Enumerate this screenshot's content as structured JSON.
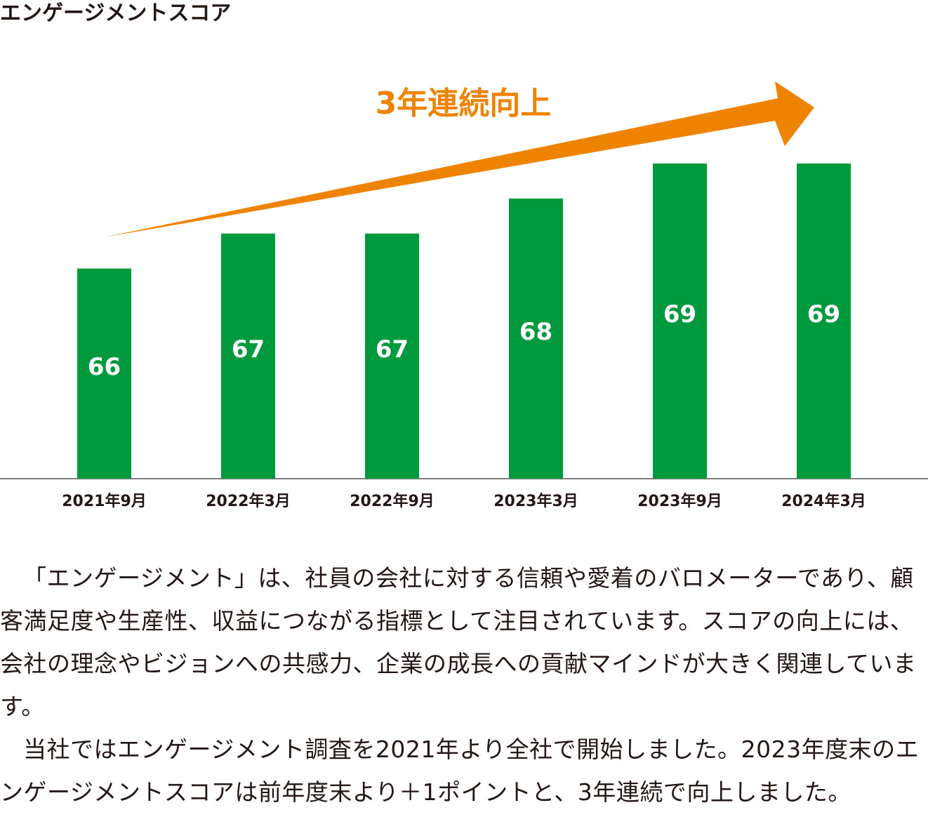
{
  "chart_data": {
    "type": "bar",
    "title": "エンゲージメントスコア",
    "annotation": "3年連続向上",
    "categories": [
      "2021年9月",
      "2022年3月",
      "2022年9月",
      "2023年3月",
      "2023年9月",
      "2024年3月"
    ],
    "values": [
      66,
      67,
      67,
      68,
      69,
      69
    ],
    "color": "#009a3e",
    "annotation_color": "#ee8300",
    "ylim": [
      60,
      70
    ]
  },
  "body": {
    "paragraphs": [
      "「エンゲージメント」は、社員の会社に対する信頼や愛着のバロメーターであり、顧客満足度や生産性、収益につながる指標として注目されています。スコアの向上には、会社の理念やビジョンへの共感力、企業の成長への貢献マインドが大きく関連しています。",
      "当社ではエンゲージメント調査を2021年より全社で開始しました。2023年度末のエンゲージメントスコアは前年度末より＋1ポイントと、3年連続で向上しました。"
    ]
  }
}
